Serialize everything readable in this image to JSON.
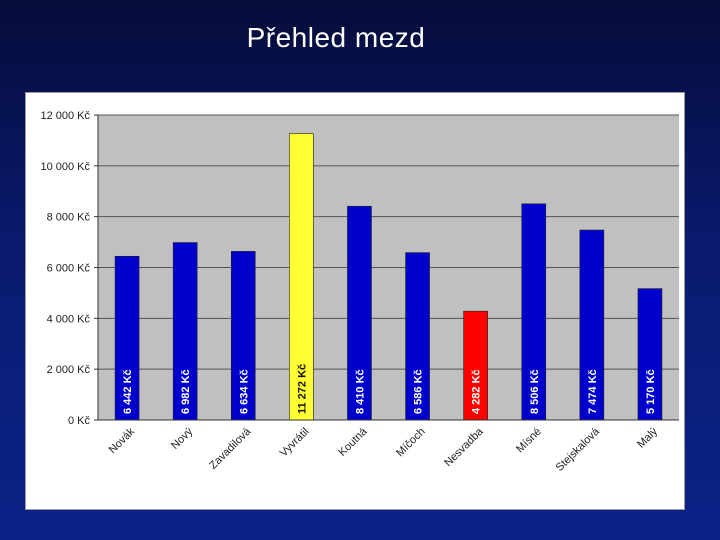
{
  "slide": {
    "title": "Přehled mezd"
  },
  "colors": {
    "slide_bg": "#0a1a6e",
    "plot_bg": "#c0c0c0",
    "bar_default": "#0000cc",
    "bar_max": "#ffff33",
    "bar_min": "#ff0000",
    "gridline": "#555555"
  },
  "chart_data": {
    "type": "bar",
    "title": "",
    "xlabel": "",
    "ylabel": "",
    "ylim": [
      0,
      12000
    ],
    "grid": true,
    "y_ticks": [
      "0 Kč",
      "2 000 Kč",
      "4 000 Kč",
      "6 000 Kč",
      "8 000 Kč",
      "10 000 Kč",
      "12 000 Kč"
    ],
    "categories": [
      "Novák",
      "Nový",
      "Zavadilová",
      "Vyvrátil",
      "Koutná",
      "Míčoch",
      "Nesvadba",
      "Mísné",
      "Stejskalová",
      "Malý"
    ],
    "values": [
      6442,
      6982,
      6634,
      11272,
      8410,
      6586,
      4282,
      8506,
      7474,
      5170
    ],
    "data_labels": [
      "6 442 Kč",
      "6 982 Kč",
      "6 634 Kč",
      "11 272 Kč",
      "8 410 Kč",
      "6 586 Kč",
      "4 282 Kč",
      "8 506 Kč",
      "7 474 Kč",
      "5 170 Kč"
    ],
    "bar_colors": [
      "#0000cc",
      "#0000cc",
      "#0000cc",
      "#ffff33",
      "#0000cc",
      "#0000cc",
      "#ff0000",
      "#0000cc",
      "#0000cc",
      "#0000cc"
    ]
  }
}
